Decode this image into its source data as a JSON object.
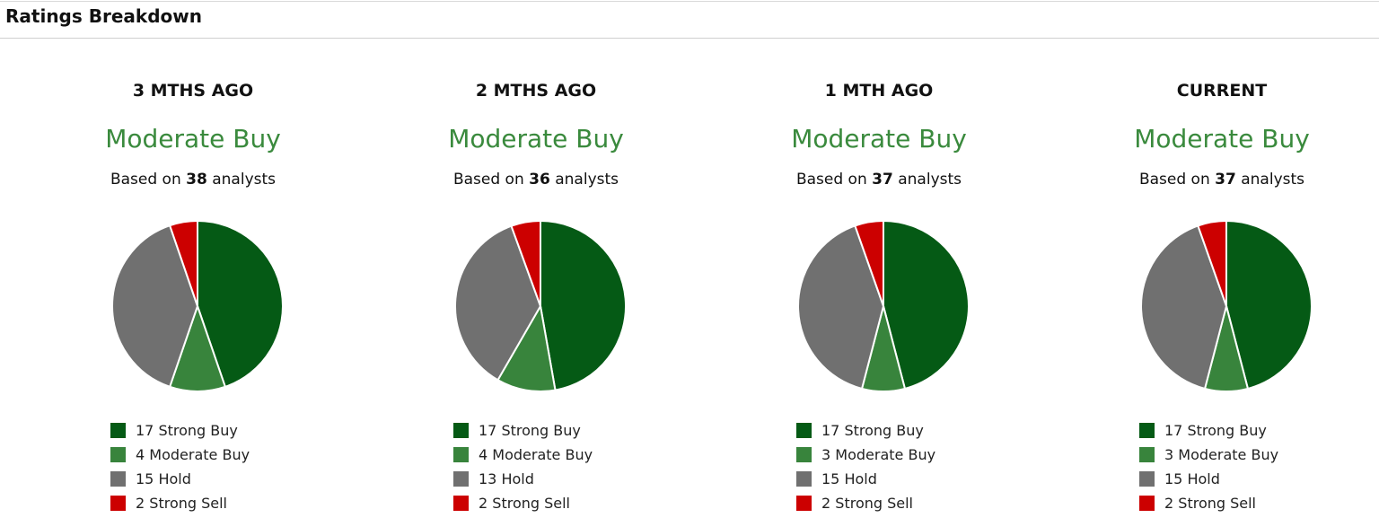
{
  "section": {
    "title": "Ratings Breakdown"
  },
  "colors": {
    "strong_buy": "#055a15",
    "moderate_buy": "#38843c",
    "hold": "#707070",
    "strong_sell": "#cc0000",
    "consensus_text": "#3a8a3d",
    "slice_border": "#ffffff"
  },
  "periods": [
    {
      "label": "3 MTHS AGO",
      "consensus": "Moderate Buy",
      "based_on_prefix": "Based on",
      "analysts": "38",
      "based_on_suffix": "analysts",
      "legend": [
        {
          "key": "strong_buy",
          "count": "17",
          "name": "Strong Buy"
        },
        {
          "key": "moderate_buy",
          "count": "4",
          "name": "Moderate Buy"
        },
        {
          "key": "hold",
          "count": "15",
          "name": "Hold"
        },
        {
          "key": "strong_sell",
          "count": "2",
          "name": "Strong Sell"
        }
      ]
    },
    {
      "label": "2 MTHS AGO",
      "consensus": "Moderate Buy",
      "based_on_prefix": "Based on",
      "analysts": "36",
      "based_on_suffix": "analysts",
      "legend": [
        {
          "key": "strong_buy",
          "count": "17",
          "name": "Strong Buy"
        },
        {
          "key": "moderate_buy",
          "count": "4",
          "name": "Moderate Buy"
        },
        {
          "key": "hold",
          "count": "13",
          "name": "Hold"
        },
        {
          "key": "strong_sell",
          "count": "2",
          "name": "Strong Sell"
        }
      ]
    },
    {
      "label": "1 MTH AGO",
      "consensus": "Moderate Buy",
      "based_on_prefix": "Based on",
      "analysts": "37",
      "based_on_suffix": "analysts",
      "legend": [
        {
          "key": "strong_buy",
          "count": "17",
          "name": "Strong Buy"
        },
        {
          "key": "moderate_buy",
          "count": "3",
          "name": "Moderate Buy"
        },
        {
          "key": "hold",
          "count": "15",
          "name": "Hold"
        },
        {
          "key": "strong_sell",
          "count": "2",
          "name": "Strong Sell"
        }
      ]
    },
    {
      "label": "CURRENT",
      "consensus": "Moderate Buy",
      "based_on_prefix": "Based on",
      "analysts": "37",
      "based_on_suffix": "analysts",
      "legend": [
        {
          "key": "strong_buy",
          "count": "17",
          "name": "Strong Buy"
        },
        {
          "key": "moderate_buy",
          "count": "3",
          "name": "Moderate Buy"
        },
        {
          "key": "hold",
          "count": "15",
          "name": "Hold"
        },
        {
          "key": "strong_sell",
          "count": "2",
          "name": "Strong Sell"
        }
      ]
    }
  ],
  "chart_data": [
    {
      "type": "pie",
      "title": "3 MTHS AGO",
      "categories": [
        "Strong Buy",
        "Moderate Buy",
        "Hold",
        "Strong Sell"
      ],
      "values": [
        17,
        4,
        15,
        2
      ],
      "colors": [
        "#055a15",
        "#38843c",
        "#707070",
        "#cc0000"
      ],
      "legend_position": "bottom"
    },
    {
      "type": "pie",
      "title": "2 MTHS AGO",
      "categories": [
        "Strong Buy",
        "Moderate Buy",
        "Hold",
        "Strong Sell"
      ],
      "values": [
        17,
        4,
        13,
        2
      ],
      "colors": [
        "#055a15",
        "#38843c",
        "#707070",
        "#cc0000"
      ],
      "legend_position": "bottom"
    },
    {
      "type": "pie",
      "title": "1 MTH AGO",
      "categories": [
        "Strong Buy",
        "Moderate Buy",
        "Hold",
        "Strong Sell"
      ],
      "values": [
        17,
        3,
        15,
        2
      ],
      "colors": [
        "#055a15",
        "#38843c",
        "#707070",
        "#cc0000"
      ],
      "legend_position": "bottom"
    },
    {
      "type": "pie",
      "title": "CURRENT",
      "categories": [
        "Strong Buy",
        "Moderate Buy",
        "Hold",
        "Strong Sell"
      ],
      "values": [
        17,
        3,
        15,
        2
      ],
      "colors": [
        "#055a15",
        "#38843c",
        "#707070",
        "#cc0000"
      ],
      "legend_position": "bottom"
    }
  ]
}
